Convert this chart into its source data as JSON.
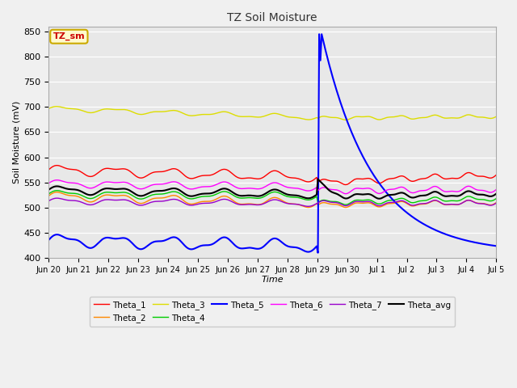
{
  "title": "TZ Soil Moisture",
  "xlabel": "Time",
  "ylabel": "Soil Moisture (mV)",
  "ylim": [
    400,
    860
  ],
  "yticks": [
    400,
    450,
    500,
    550,
    600,
    650,
    700,
    750,
    800,
    850
  ],
  "fig_bg_color": "#f0f0f0",
  "plot_bg_color": "#e8e8e8",
  "legend_label": "TZ_sm",
  "series_colors": {
    "Theta_1": "#ff0000",
    "Theta_2": "#ff8800",
    "Theta_3": "#dddd00",
    "Theta_4": "#00cc00",
    "Theta_5": "#0000ff",
    "Theta_6": "#ff00ff",
    "Theta_7": "#9900cc",
    "Theta_avg": "#000000"
  },
  "tick_labels": [
    "Jun 20",
    "Jun 21",
    "Jun 22",
    "Jun 23",
    "Jun 24",
    "Jun 25",
    "Jun 26",
    "Jun 27",
    "Jun 28",
    "Jun 29",
    "Jun 30",
    "Jul 1",
    "Jul 2",
    "Jul 3",
    "Jul 4",
    "Jul 5"
  ],
  "tick_positions": [
    0,
    1,
    2,
    3,
    4,
    5,
    6,
    7,
    8,
    9,
    10,
    11,
    12,
    13,
    14,
    15
  ]
}
